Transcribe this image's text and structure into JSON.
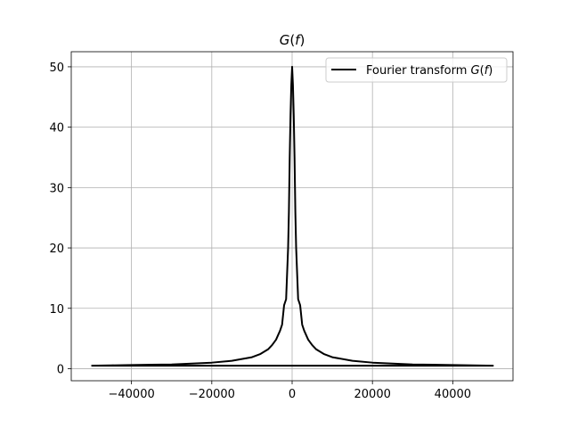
{
  "chart_data": {
    "type": "line",
    "title": "G(f)",
    "title_parts": {
      "func": "G",
      "open": "(",
      "var": "f",
      "close": ")"
    },
    "xlabel": "",
    "ylabel": "",
    "xlim": [
      -55000,
      55000
    ],
    "ylim": [
      -2,
      52.5
    ],
    "grid": true,
    "legend_position": "top-right",
    "xticks": [
      {
        "value": -40000,
        "label": "−40000"
      },
      {
        "value": -20000,
        "label": "−20000"
      },
      {
        "value": 0,
        "label": "0"
      },
      {
        "value": 20000,
        "label": "20000"
      },
      {
        "value": 40000,
        "label": "40000"
      }
    ],
    "yticks": [
      {
        "value": 0,
        "label": "0"
      },
      {
        "value": 10,
        "label": "10"
      },
      {
        "value": 20,
        "label": "20"
      },
      {
        "value": 30,
        "label": "30"
      },
      {
        "value": 40,
        "label": "40"
      },
      {
        "value": 50,
        "label": "50"
      }
    ],
    "series": [
      {
        "name": "Fourier transform G(f)",
        "legend_text": "Fourier transform ",
        "legend_math": {
          "func": "G",
          "open": "(",
          "var": "f",
          "close": ")"
        },
        "color": "#000000",
        "x": [
          -50000,
          -45000,
          -40000,
          -35000,
          -30000,
          -25000,
          -20000,
          -15000,
          -10000,
          -8000,
          -6000,
          -5000,
          -4000,
          -3000,
          -2500,
          -2000,
          -1500,
          -1000,
          -800,
          -600,
          -400,
          -200,
          0,
          200,
          400,
          600,
          800,
          1000,
          1500,
          2000,
          2500,
          3000,
          4000,
          5000,
          6000,
          8000,
          10000,
          15000,
          20000,
          25000,
          30000,
          35000,
          40000,
          45000,
          50000,
          45000,
          40000,
          35000,
          30000,
          25000,
          20000,
          15000,
          10000,
          5000,
          0,
          -5000,
          -10000,
          -15000,
          -20000,
          -25000,
          -30000,
          -35000,
          -40000,
          -45000,
          -50000
        ],
        "y": [
          0.5,
          0.55,
          0.6,
          0.65,
          0.7,
          0.85,
          1.0,
          1.3,
          1.9,
          2.4,
          3.2,
          3.9,
          4.8,
          6.3,
          7.3,
          10.5,
          11.5,
          20.0,
          26.0,
          35.0,
          42.0,
          47.0,
          50.0,
          47.0,
          42.0,
          35.0,
          26.0,
          20.0,
          11.5,
          10.5,
          7.3,
          6.3,
          4.8,
          3.9,
          3.2,
          2.4,
          1.9,
          1.3,
          1.0,
          0.85,
          0.7,
          0.65,
          0.6,
          0.55,
          0.5,
          0.5,
          0.5,
          0.5,
          0.5,
          0.5,
          0.5,
          0.5,
          0.5,
          0.5,
          0.5,
          0.5,
          0.5,
          0.5,
          0.5,
          0.5,
          0.5,
          0.5,
          0.5,
          0.5,
          0.5
        ]
      }
    ]
  }
}
